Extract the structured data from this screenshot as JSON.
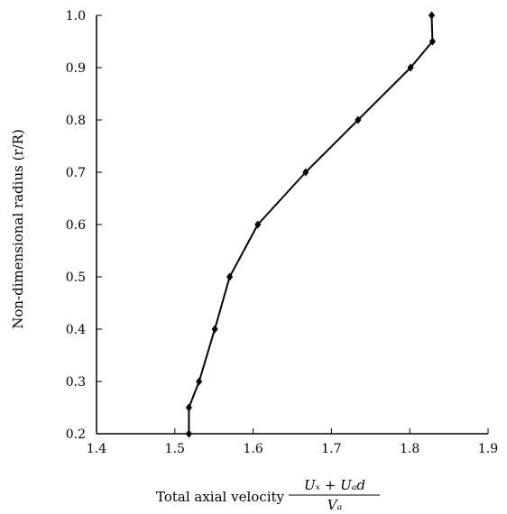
{
  "chart_data": {
    "type": "line",
    "title": "",
    "xlabel": "Total axial velocity",
    "xlabel_fraction": {
      "numerator": "Uₓ + Uₐd",
      "denominator": "Vₐ"
    },
    "ylabel": "Non-dimensional radius (r/R)",
    "xlim": [
      1.4,
      1.9
    ],
    "ylim": [
      0.2,
      1.0
    ],
    "x_ticks": [
      "1.4",
      "1.5",
      "1.6",
      "1.7",
      "1.8",
      "1.9"
    ],
    "y_ticks": [
      "0.2",
      "0.3",
      "0.4",
      "0.5",
      "0.6",
      "0.7",
      "0.8",
      "0.9",
      "1.0"
    ],
    "grid": false,
    "legend": "none",
    "line_color": "#000000",
    "marker": "diamond",
    "series": [
      {
        "points": [
          {
            "x": 1.518,
            "y": 0.2
          },
          {
            "x": 1.518,
            "y": 0.25
          },
          {
            "x": 1.531,
            "y": 0.3
          },
          {
            "x": 1.551,
            "y": 0.4
          },
          {
            "x": 1.57,
            "y": 0.5
          },
          {
            "x": 1.606,
            "y": 0.6
          },
          {
            "x": 1.667,
            "y": 0.7
          },
          {
            "x": 1.734,
            "y": 0.8
          },
          {
            "x": 1.801,
            "y": 0.9
          },
          {
            "x": 1.829,
            "y": 0.95
          },
          {
            "x": 1.828,
            "y": 1.0
          }
        ]
      }
    ]
  }
}
